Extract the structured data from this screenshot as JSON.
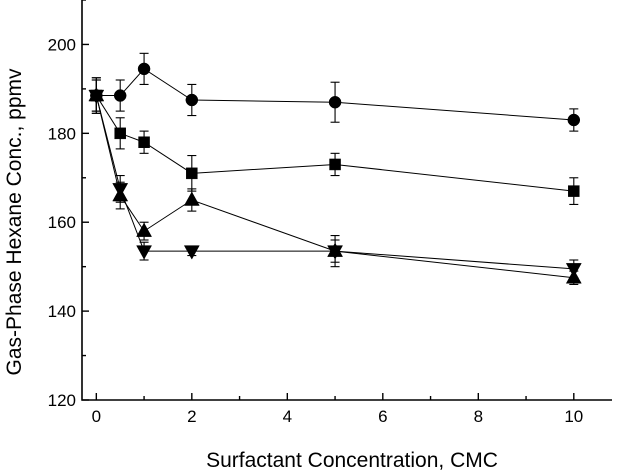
{
  "chart_data": {
    "type": "scatter",
    "xlabel": "Surfactant Concentration, CMC",
    "ylabel": "Gas-Phase Hexane Conc., ppmv",
    "xlim": [
      -0.3,
      10.8
    ],
    "ylim": [
      120,
      210
    ],
    "xticks": [
      0,
      2,
      4,
      6,
      8,
      10
    ],
    "yticks": [
      120,
      140,
      160,
      180,
      200
    ],
    "legend": "none",
    "grid": false,
    "series": [
      {
        "marker": "circle",
        "x": [
          0,
          0.5,
          1,
          2,
          5,
          10
        ],
        "y": [
          188.5,
          188.5,
          194.5,
          187.5,
          187,
          183
        ],
        "err": [
          4,
          3.5,
          3.5,
          3.5,
          4.5,
          2.5
        ]
      },
      {
        "marker": "square",
        "x": [
          0,
          0.5,
          1,
          2,
          5,
          10
        ],
        "y": [
          188.5,
          180,
          178,
          171,
          173,
          167
        ],
        "err": [
          4,
          3.5,
          2.5,
          4,
          2.5,
          3
        ]
      },
      {
        "marker": "triangle-up",
        "x": [
          0,
          0.5,
          1,
          2,
          5,
          10
        ],
        "y": [
          188.5,
          166,
          158,
          165,
          153.5,
          147.5
        ],
        "err": [
          3.5,
          3,
          2,
          2.5,
          3.5,
          1.5
        ]
      },
      {
        "marker": "triangle-down",
        "x": [
          0,
          0.5,
          1,
          2,
          5,
          10
        ],
        "y": [
          188.5,
          167.5,
          153.5,
          153.5,
          153.5,
          149.5
        ],
        "err": [
          3.5,
          3,
          2,
          1,
          2.5,
          2
        ]
      }
    ]
  }
}
